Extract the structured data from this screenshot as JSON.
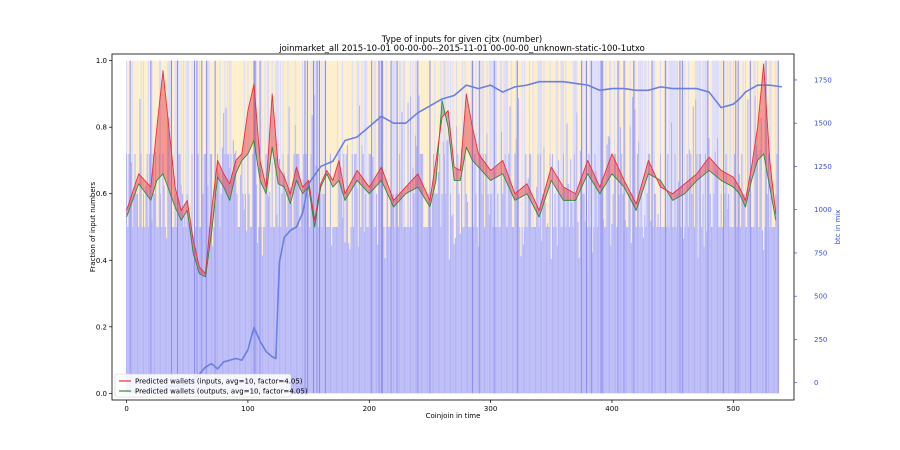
{
  "chart_data": {
    "type": "line",
    "title": "Type of inputs for given cjtx (number)",
    "subtitle": "joinmarket_all 2015-10-01 00-00-00--2015-11-01 00-00-00_unknown-static-100-1utxo",
    "xlabel": "Coinjoin in time",
    "ylabel": "Fraction of input numbers",
    "y2label": "btc in mix",
    "xlim": [
      -12,
      550
    ],
    "ylim": [
      -0.02,
      1.02
    ],
    "y2lim": [
      -100,
      1900
    ],
    "xticks": [
      "0",
      "100",
      "200",
      "300",
      "400",
      "500"
    ],
    "yticks": [
      "0.0",
      "0.2",
      "0.4",
      "0.6",
      "0.8",
      "1.0"
    ],
    "y2ticks": [
      "0",
      "250",
      "500",
      "750",
      "1000",
      "1250",
      "1500",
      "1750"
    ],
    "n_coinjoins": 538,
    "bar_colors": {
      "base": "#b3b3f5",
      "upper": "#fde9b8",
      "upper_alt": "#cfcff7",
      "full": "#8c8cf0"
    },
    "series": [
      {
        "name": "Predicted wallets (inputs, avg=10, factor=4.05)",
        "color": "#e8303a",
        "x": [
          0,
          10,
          20,
          25,
          30,
          36,
          40,
          45,
          50,
          55,
          60,
          65,
          70,
          75,
          80,
          85,
          90,
          95,
          100,
          105,
          110,
          115,
          120,
          125,
          130,
          135,
          140,
          145,
          150,
          155,
          160,
          165,
          170,
          175,
          180,
          190,
          200,
          210,
          220,
          230,
          240,
          250,
          255,
          260,
          265,
          270,
          275,
          280,
          285,
          290,
          300,
          310,
          320,
          330,
          340,
          350,
          360,
          370,
          380,
          390,
          400,
          410,
          420,
          430,
          440,
          450,
          460,
          470,
          480,
          490,
          500,
          505,
          510,
          515,
          520,
          525,
          530,
          535
        ],
        "y": [
          0.55,
          0.66,
          0.62,
          0.8,
          0.97,
          0.76,
          0.62,
          0.55,
          0.58,
          0.46,
          0.38,
          0.36,
          0.55,
          0.7,
          0.66,
          0.63,
          0.7,
          0.72,
          0.85,
          0.93,
          0.7,
          0.62,
          0.9,
          0.68,
          0.65,
          0.6,
          0.68,
          0.62,
          0.64,
          0.52,
          0.63,
          0.67,
          0.64,
          0.7,
          0.6,
          0.67,
          0.62,
          0.68,
          0.58,
          0.62,
          0.66,
          0.58,
          0.7,
          0.83,
          0.85,
          0.68,
          0.67,
          0.9,
          0.8,
          0.72,
          0.67,
          0.7,
          0.6,
          0.63,
          0.55,
          0.68,
          0.62,
          0.6,
          0.7,
          0.62,
          0.72,
          0.64,
          0.57,
          0.7,
          0.62,
          0.6,
          0.63,
          0.66,
          0.71,
          0.67,
          0.65,
          0.62,
          0.58,
          0.68,
          0.8,
          0.99,
          0.7,
          0.54
        ]
      },
      {
        "name": "Predicted wallets (outputs, avg=10, factor=4.05)",
        "color": "#2e8b3a",
        "x": [
          0,
          10,
          20,
          25,
          30,
          36,
          40,
          45,
          50,
          55,
          60,
          65,
          70,
          75,
          80,
          85,
          90,
          95,
          100,
          105,
          110,
          115,
          120,
          125,
          130,
          135,
          140,
          145,
          150,
          155,
          160,
          165,
          170,
          175,
          180,
          190,
          200,
          210,
          220,
          230,
          240,
          250,
          255,
          260,
          265,
          270,
          275,
          280,
          285,
          290,
          300,
          310,
          320,
          330,
          340,
          350,
          360,
          370,
          380,
          390,
          400,
          410,
          420,
          430,
          440,
          450,
          460,
          470,
          480,
          490,
          500,
          505,
          510,
          515,
          520,
          525,
          530,
          535
        ],
        "y": [
          0.53,
          0.63,
          0.58,
          0.64,
          0.66,
          0.6,
          0.56,
          0.52,
          0.55,
          0.42,
          0.36,
          0.35,
          0.48,
          0.65,
          0.62,
          0.58,
          0.66,
          0.7,
          0.72,
          0.76,
          0.64,
          0.6,
          0.74,
          0.63,
          0.62,
          0.57,
          0.64,
          0.6,
          0.62,
          0.5,
          0.62,
          0.66,
          0.62,
          0.64,
          0.58,
          0.64,
          0.6,
          0.64,
          0.56,
          0.6,
          0.62,
          0.56,
          0.64,
          0.88,
          0.8,
          0.64,
          0.64,
          0.74,
          0.7,
          0.68,
          0.64,
          0.66,
          0.58,
          0.6,
          0.53,
          0.64,
          0.58,
          0.58,
          0.66,
          0.6,
          0.66,
          0.62,
          0.55,
          0.66,
          0.64,
          0.58,
          0.6,
          0.64,
          0.67,
          0.64,
          0.62,
          0.6,
          0.56,
          0.64,
          0.7,
          0.72,
          0.62,
          0.52
        ]
      },
      {
        "name": "btc in mix",
        "axis": "right",
        "color": "#6a7fe0",
        "x": [
          0,
          10,
          20,
          25,
          35,
          45,
          55,
          60,
          65,
          70,
          75,
          80,
          90,
          95,
          100,
          105,
          110,
          115,
          120,
          123,
          126,
          130,
          135,
          140,
          145,
          150,
          160,
          170,
          180,
          190,
          200,
          210,
          220,
          230,
          240,
          250,
          260,
          270,
          280,
          290,
          300,
          310,
          320,
          330,
          340,
          350,
          360,
          370,
          380,
          390,
          400,
          410,
          420,
          430,
          440,
          450,
          460,
          470,
          480,
          490,
          500,
          505,
          510,
          515,
          520,
          530,
          540
        ],
        "y": [
          -50,
          -50,
          -50,
          -30,
          -20,
          -20,
          20,
          50,
          90,
          110,
          80,
          120,
          140,
          130,
          190,
          320,
          240,
          180,
          150,
          140,
          700,
          840,
          880,
          900,
          980,
          1150,
          1250,
          1280,
          1400,
          1420,
          1480,
          1540,
          1500,
          1500,
          1560,
          1600,
          1640,
          1660,
          1720,
          1700,
          1720,
          1680,
          1710,
          1720,
          1740,
          1740,
          1740,
          1730,
          1720,
          1690,
          1700,
          1700,
          1690,
          1690,
          1710,
          1700,
          1700,
          1700,
          1680,
          1590,
          1610,
          1640,
          1680,
          1700,
          1720,
          1720,
          1710
        ]
      }
    ],
    "legend_position": "lower-left"
  }
}
